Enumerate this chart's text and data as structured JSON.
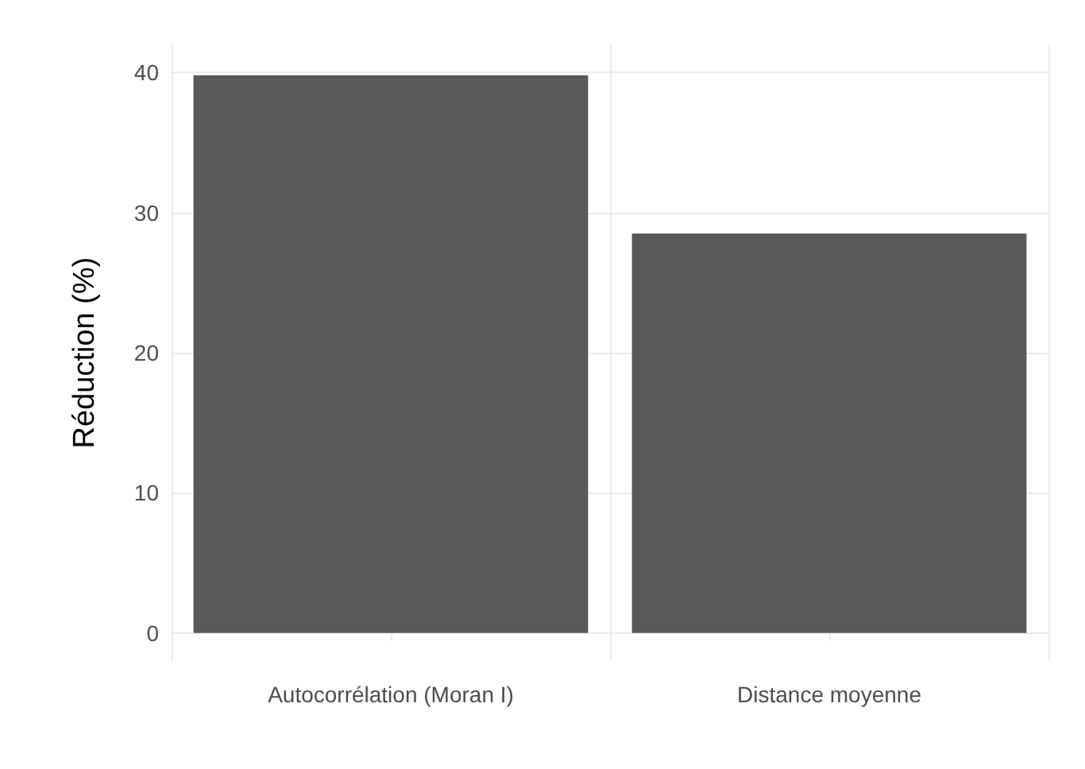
{
  "chart_data": {
    "type": "bar",
    "ylabel": "Réduction (%)",
    "categories": [
      "Autocorrélation (Moran I)",
      "Distance moyenne"
    ],
    "values": [
      39.8,
      28.5
    ],
    "color": "#595959",
    "ylim": [
      -2,
      42
    ],
    "yticks": [
      0,
      10,
      20,
      30,
      40
    ],
    "grid": true
  }
}
